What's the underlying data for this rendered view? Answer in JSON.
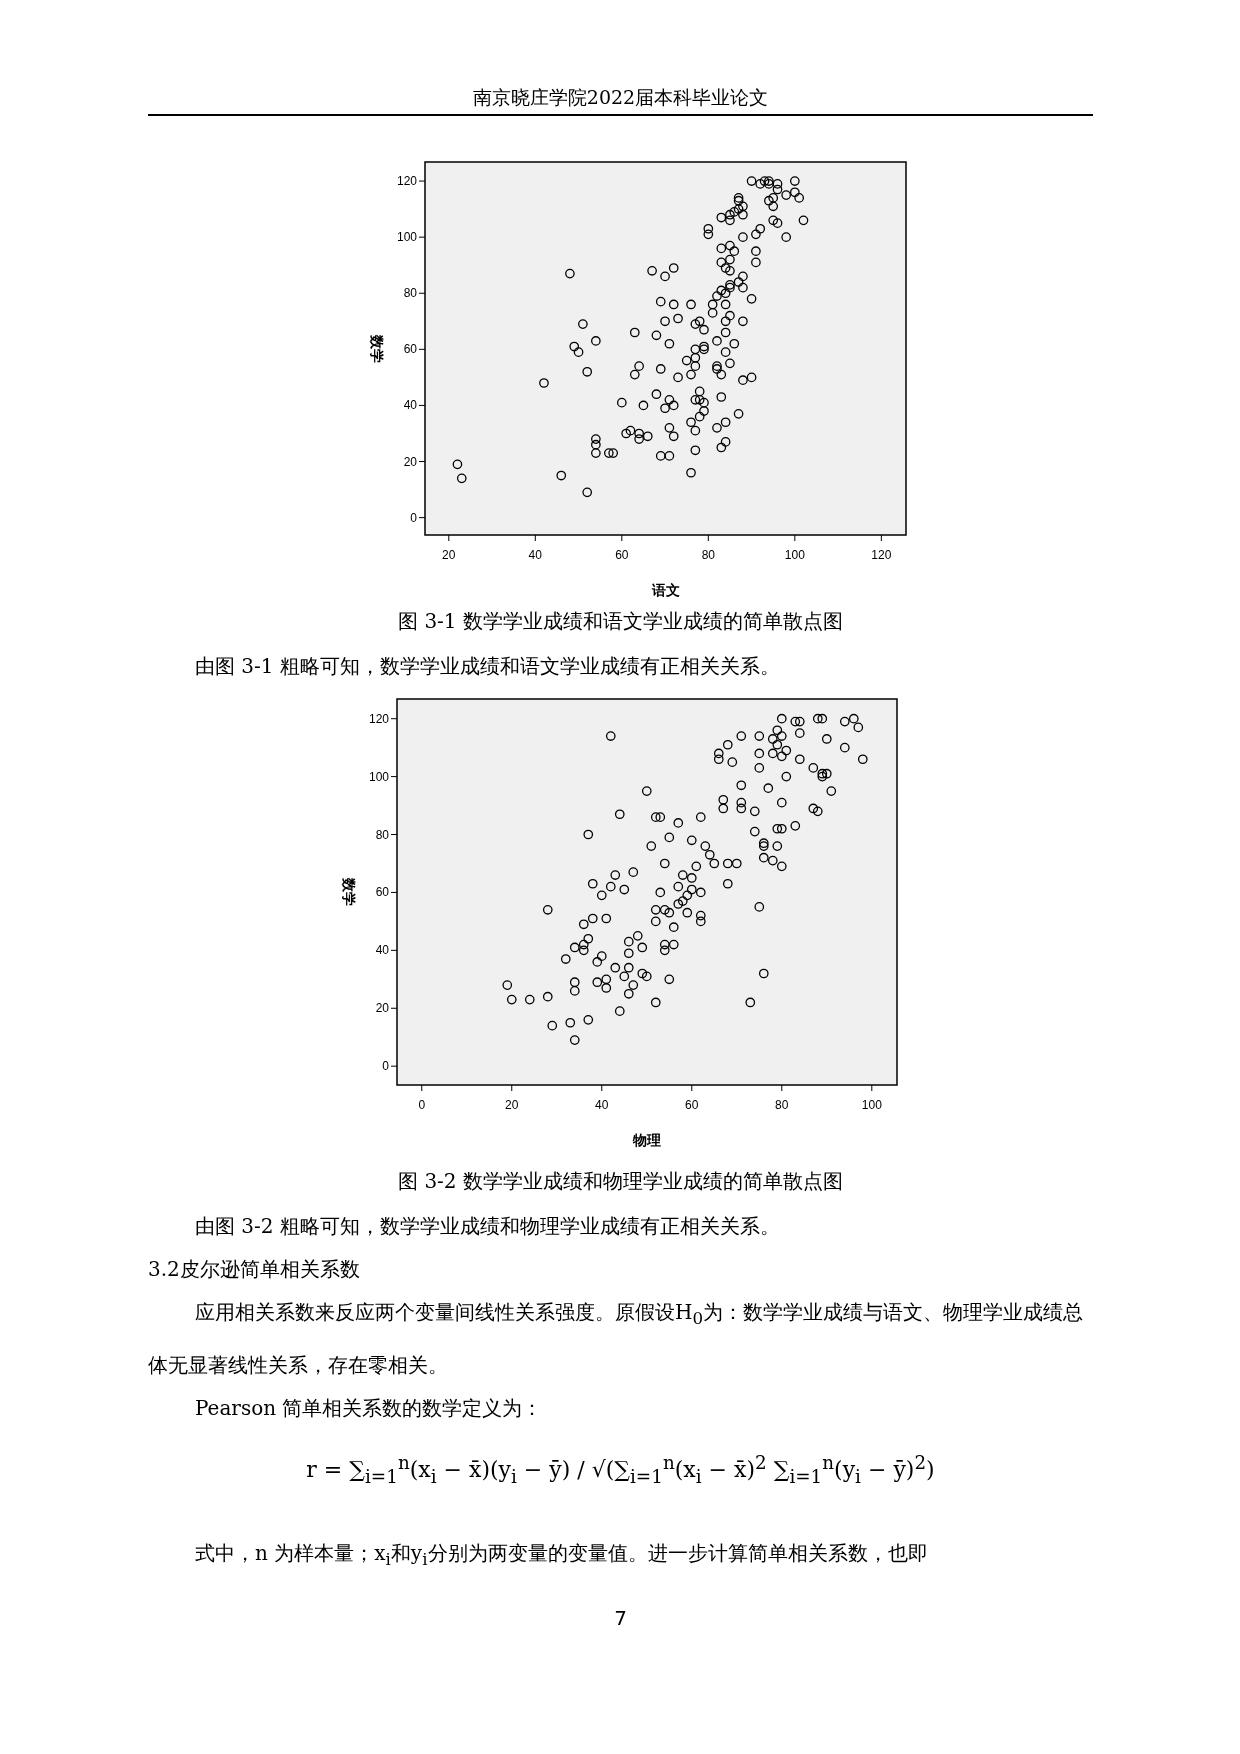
{
  "chart_data": [
    {
      "type": "scatter",
      "xlabel": "语文",
      "ylabel": "数学",
      "xlim": [
        14.5,
        125.7
      ],
      "ylim": [
        -6.2,
        126.8
      ],
      "xticks": [
        20,
        40,
        60,
        80,
        100,
        120
      ],
      "yticks": [
        0,
        20,
        40,
        60,
        80,
        100,
        120
      ],
      "marker": "circle",
      "annotations": [
        "南京晓庄学院2022届本科毕业论文",
        "图 3-1 数学学业成绩和语文学业成绩的简单散点图",
        "由图 3-1 粗略可知，数学学业成绩和语文学业成绩有正相关关系。"
      ],
      "series": [
        {
          "color": "#000000",
          "x": [
            90,
            92,
            93,
            94,
            94,
            96,
            96,
            100,
            100,
            101,
            98,
            95,
            94,
            95,
            87,
            87,
            88,
            87,
            86,
            85,
            88,
            83,
            85,
            95,
            96,
            102,
            92,
            91,
            98,
            88,
            80,
            80,
            85,
            83,
            86,
            91,
            85,
            83,
            91,
            84,
            85,
            48,
            67,
            70,
            72,
            88,
            87,
            85,
            85,
            88,
            83,
            84,
            82,
            90,
            69,
            72,
            76,
            81,
            84,
            81,
            73,
            85,
            70,
            78,
            84,
            88,
            77,
            51,
            79,
            63,
            84,
            68,
            54,
            82,
            71,
            86,
            49,
            79,
            79,
            77,
            50,
            84,
            75,
            77,
            85,
            77,
            64,
            69,
            82,
            82,
            52,
            63,
            76,
            83,
            73,
            90,
            88,
            42,
            78,
            68,
            83,
            71,
            77,
            78,
            60,
            79,
            65,
            72,
            70,
            79,
            87,
            78,
            76,
            84,
            71,
            82,
            62,
            77,
            61,
            64,
            66,
            72,
            54,
            64,
            84,
            54,
            83,
            77,
            54,
            57,
            58,
            69,
            71,
            22,
            76,
            46,
            23,
            52
          ],
          "values": [
            120,
            119,
            120,
            120,
            119,
            119,
            117,
            120,
            116,
            114,
            115,
            114,
            113,
            111,
            114,
            113,
            111,
            110,
            109,
            108,
            108,
            107,
            106,
            106,
            105,
            106,
            103,
            101,
            100,
            100,
            103,
            101,
            97,
            96,
            95,
            95,
            92,
            91,
            91,
            89,
            88,
            87,
            88,
            86,
            89,
            86,
            84,
            83,
            82,
            82,
            81,
            80,
            79,
            78,
            77,
            76,
            76,
            76,
            76,
            73,
            71,
            72,
            70,
            70,
            70,
            70,
            69,
            69,
            67,
            66,
            66,
            65,
            63,
            63,
            62,
            62,
            61,
            61,
            60,
            60,
            59,
            59,
            56,
            57,
            55,
            54,
            54,
            53,
            54,
            53,
            52,
            51,
            51,
            51,
            50,
            50,
            49,
            48,
            45,
            44,
            43,
            42,
            42,
            42,
            41,
            41,
            40,
            40,
            39,
            38,
            37,
            36,
            34,
            34,
            32,
            32,
            31,
            31,
            30,
            30,
            29,
            29,
            28,
            28,
            27,
            26,
            25,
            24,
            23,
            23,
            23,
            22,
            22,
            19,
            16,
            15,
            14,
            9
          ]
        }
      ]
    },
    {
      "type": "scatter",
      "xlabel": "物理",
      "ylabel": "数学",
      "xlim": [
        -5.5,
        105.6
      ],
      "ylim": [
        -6.5,
        126.8
      ],
      "xticks": [
        0,
        20,
        40,
        60,
        80,
        100
      ],
      "yticks": [
        0,
        20,
        40,
        60,
        80,
        100,
        120
      ],
      "marker": "circle",
      "annotations": [
        "图 3-2 数学学业成绩和物理学业成绩的简单散点图",
        "由图 3-2 粗略可知，数学学业成绩和物理学业成绩有正相关关系。",
        "3.2皮尔逊简单相关系数",
        "应用相关系数来反应两个变量间线性关系强度。原假设H$_{0}$为：数学学业成绩与语文、物理学业成绩总体无显著线性关系，存在零相关。",
        "Pearson 简单相关系数的数学定义为：",
        "r = ∑$_{i=1}$$^{n}$(x$_{i}$ − x̄)(y$_{i}$ − ȳ) / √(∑$_{i=1}$$^{n}$(x$_{i}$ − x̄)$^{2}$ ∑$_{i=1}$$^{n}$(y$_{i}$ − ȳ)$^{2}$)",
        "式中，n 为样本量；x$_{i}$和y$_{i}$分别为两变量的变量值。进一步计算简单相关系数，也即",
        "7"
      ],
      "series": [
        {
          "color": "#000000",
          "x": [
            80,
            83,
            84,
            88,
            89,
            94,
            96,
            97,
            79,
            78,
            80,
            84,
            90,
            42,
            71,
            75,
            68,
            79,
            81,
            94,
            66,
            66,
            75,
            78,
            80,
            84,
            98,
            69,
            75,
            87,
            89,
            90,
            89,
            81,
            71,
            77,
            50,
            91,
            67,
            71,
            80,
            67,
            71,
            87,
            74,
            88,
            44,
            52,
            53,
            62,
            57,
            83,
            79,
            80,
            74,
            37,
            55,
            60,
            76,
            76,
            51,
            63,
            79,
            64,
            76,
            78,
            54,
            65,
            68,
            70,
            80,
            61,
            47,
            43,
            58,
            60,
            38,
            68,
            42,
            57,
            45,
            60,
            53,
            62,
            40,
            59,
            58,
            57,
            75,
            28,
            52,
            54,
            55,
            59,
            62,
            38,
            41,
            36,
            52,
            62,
            56,
            48,
            37,
            46,
            36,
            54,
            56,
            34,
            49,
            36,
            54,
            46,
            40,
            32,
            39,
            43,
            46,
            49,
            76,
            50,
            45,
            41,
            55,
            34,
            39,
            19,
            47,
            41,
            34,
            46,
            28,
            20,
            24,
            52,
            73,
            44,
            37,
            33,
            29,
            34
          ],
          "values": [
            120,
            119,
            119,
            120,
            120,
            119,
            120,
            117,
            116,
            113,
            114,
            115,
            113,
            114,
            114,
            114,
            111,
            111,
            109,
            110,
            108,
            106,
            108,
            108,
            107,
            106,
            106,
            105,
            103,
            103,
            101,
            101,
            100,
            100,
            97,
            96,
            95,
            95,
            92,
            91,
            91,
            89,
            89,
            89,
            88,
            88,
            87,
            86,
            86,
            86,
            84,
            83,
            82,
            82,
            81,
            80,
            79,
            78,
            77,
            76,
            76,
            76,
            76,
            73,
            72,
            71,
            70,
            70,
            70,
            70,
            69,
            69,
            67,
            66,
            66,
            65,
            63,
            63,
            62,
            62,
            61,
            61,
            60,
            60,
            59,
            59,
            57,
            56,
            55,
            54,
            54,
            54,
            53,
            53,
            52,
            51,
            51,
            49,
            50,
            50,
            48,
            45,
            44,
            43,
            42,
            42,
            42,
            41,
            41,
            40,
            40,
            39,
            38,
            37,
            36,
            34,
            34,
            32,
            32,
            31,
            31,
            30,
            30,
            29,
            29,
            28,
            28,
            27,
            26,
            25,
            24,
            23,
            23,
            22,
            22,
            19,
            16,
            15,
            14,
            9
          ]
        }
      ]
    }
  ]
}
